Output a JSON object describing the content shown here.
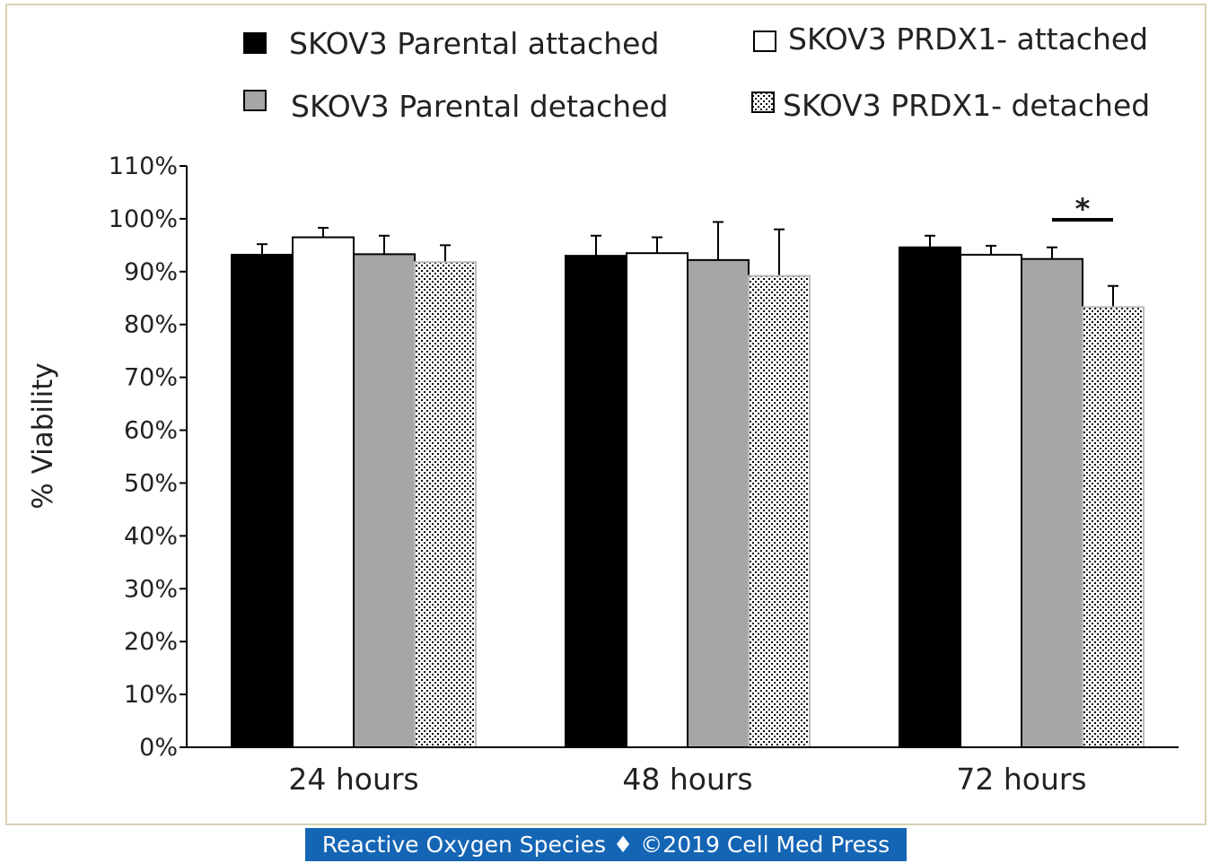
{
  "chart_data": {
    "type": "bar",
    "categories": [
      "24 hours",
      "48 hours",
      "72 hours"
    ],
    "ylabel": "% Viability",
    "xlabel": "",
    "ylim": [
      0,
      110
    ],
    "yticks": [
      "0%",
      "10%",
      "20%",
      "30%",
      "40%",
      "50%",
      "60%",
      "70%",
      "80%",
      "90%",
      "100%",
      "110%"
    ],
    "legend_position": "top",
    "series": [
      {
        "name": "SKOV3  Parental attached",
        "style": "black",
        "values": [
          93.2,
          93.0,
          94.6
        ],
        "errors": [
          2.0,
          3.8,
          2.2
        ]
      },
      {
        "name": "SKOV3  PRDX1- attached",
        "style": "white",
        "values": [
          96.5,
          93.5,
          93.2
        ],
        "errors": [
          1.8,
          3.0,
          1.7
        ]
      },
      {
        "name": "SKOV3  Parental detached",
        "style": "gray",
        "values": [
          93.3,
          92.2,
          92.4
        ],
        "errors": [
          3.5,
          7.2,
          2.2
        ]
      },
      {
        "name": "SKOV3  PRDX1- detached",
        "style": "dotted",
        "values": [
          91.8,
          89.2,
          83.3
        ],
        "errors": [
          3.2,
          8.8,
          4.0
        ]
      }
    ],
    "annotations": [
      {
        "text": "*",
        "category": "72 hours",
        "between": [
          2,
          3
        ]
      }
    ]
  },
  "footer": {
    "text": "Reactive Oxygen Species ♦ ©2019 Cell Med Press"
  },
  "colors": {
    "black": "#000000",
    "gray": "#a6a6a6",
    "frame": "#d9d2b4",
    "footer_bg": "#1565b5"
  }
}
